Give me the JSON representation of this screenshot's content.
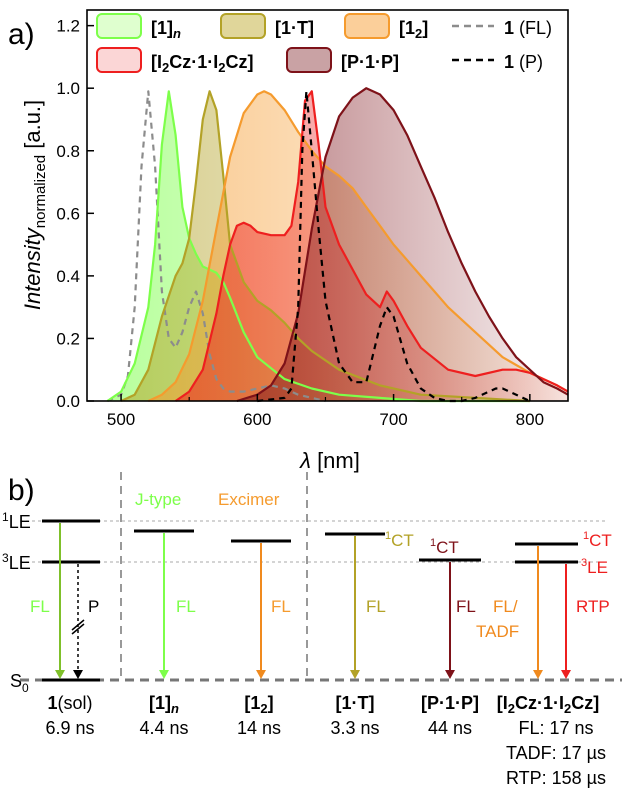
{
  "panel_a": {
    "label": "a)",
    "ylabel_main": "Intensity",
    "ylabel_sub": "normalized",
    "ylabel_unit": " [a.u.]",
    "xlabel_sym": "λ",
    "xlabel_unit": " [nm]",
    "legend": [
      {
        "main": "[1]",
        "sub": "n",
        "color": "#7dff4a"
      },
      {
        "main": "[1·T]",
        "sub": "",
        "color": "#b3a227"
      },
      {
        "main": "[1",
        "sub": "2",
        "tail": "]",
        "color": "#f59b2e"
      },
      {
        "main": "1",
        "tail": " (FL)",
        "color": "#8c8c8c"
      },
      {
        "main": "[I",
        "sub": "2",
        "tail": "Cz·1·I",
        "sub2": "2",
        "tail2": "Cz]",
        "color": "#ee1f1f"
      },
      {
        "main": "[P·1·P]",
        "color": "#7e1219"
      },
      {
        "main": "1",
        "tail": " (P)",
        "color": "#000000"
      }
    ]
  },
  "chart_data": {
    "type": "line",
    "title": "",
    "xlabel": "λ [nm]",
    "ylabel": "Intensity normalized [a.u.]",
    "xlim": [
      475,
      828
    ],
    "ylim": [
      0,
      1.25
    ],
    "xticks": [
      500,
      600,
      700,
      800
    ],
    "yticks": [
      0.0,
      0.2,
      0.4,
      0.6,
      0.8,
      1.0,
      1.2
    ],
    "series": [
      {
        "name": "1 (FL)",
        "color": "#8c8c8c",
        "style": "dashed",
        "fill": false,
        "x": [
          490,
          500,
          505,
          510,
          515,
          520,
          525,
          530,
          535,
          540,
          545,
          550,
          555,
          560,
          565,
          570,
          575,
          580,
          590,
          600,
          610,
          620,
          630,
          640,
          650
        ],
        "y": [
          0.0,
          0.02,
          0.08,
          0.3,
          0.75,
          0.99,
          0.75,
          0.35,
          0.2,
          0.17,
          0.22,
          0.3,
          0.35,
          0.28,
          0.15,
          0.07,
          0.04,
          0.03,
          0.03,
          0.04,
          0.05,
          0.04,
          0.02,
          0.01,
          0.0
        ]
      },
      {
        "name": "[1]n",
        "color": "#7dff4a",
        "style": "solid",
        "fill": true,
        "x": [
          490,
          500,
          510,
          520,
          525,
          530,
          535,
          540,
          545,
          550,
          555,
          560,
          565,
          570,
          575,
          580,
          590,
          600,
          620,
          640,
          660,
          690,
          720,
          760,
          800
        ],
        "y": [
          0.0,
          0.03,
          0.12,
          0.3,
          0.5,
          0.82,
          0.99,
          0.85,
          0.62,
          0.52,
          0.47,
          0.43,
          0.42,
          0.41,
          0.38,
          0.33,
          0.22,
          0.14,
          0.07,
          0.04,
          0.02,
          0.01,
          0.0,
          0.0,
          0.0
        ]
      },
      {
        "name": "[1·T]",
        "color": "#b3a227",
        "style": "solid",
        "fill": true,
        "x": [
          500,
          510,
          520,
          530,
          540,
          545,
          550,
          555,
          560,
          565,
          570,
          575,
          580,
          590,
          600,
          610,
          620,
          630,
          640,
          660,
          690,
          720,
          760,
          800
        ],
        "y": [
          0.0,
          0.02,
          0.1,
          0.27,
          0.4,
          0.44,
          0.52,
          0.7,
          0.9,
          0.99,
          0.93,
          0.72,
          0.5,
          0.38,
          0.32,
          0.29,
          0.25,
          0.2,
          0.16,
          0.1,
          0.05,
          0.02,
          0.01,
          0.0
        ]
      },
      {
        "name": "[12]",
        "color": "#f59b2e",
        "style": "solid",
        "fill": true,
        "x": [
          520,
          530,
          540,
          550,
          560,
          570,
          580,
          590,
          600,
          605,
          610,
          620,
          630,
          640,
          650,
          660,
          670,
          680,
          690,
          700,
          710,
          720,
          730,
          740,
          760,
          780,
          800,
          820,
          828
        ],
        "y": [
          0.0,
          0.02,
          0.06,
          0.15,
          0.32,
          0.55,
          0.78,
          0.92,
          0.98,
          0.99,
          0.98,
          0.93,
          0.86,
          0.8,
          0.75,
          0.72,
          0.68,
          0.62,
          0.56,
          0.5,
          0.45,
          0.4,
          0.35,
          0.3,
          0.22,
          0.14,
          0.09,
          0.05,
          0.03
        ]
      },
      {
        "name": "[I2Cz·1·I2Cz]",
        "color": "#ee1f1f",
        "style": "solid",
        "fill": true,
        "x": [
          540,
          550,
          560,
          570,
          575,
          580,
          585,
          590,
          595,
          600,
          610,
          620,
          625,
          630,
          635,
          640,
          645,
          650,
          660,
          670,
          680,
          690,
          695,
          700,
          710,
          720,
          740,
          760,
          780,
          790,
          800,
          810,
          820,
          828
        ],
        "y": [
          0.0,
          0.03,
          0.1,
          0.28,
          0.4,
          0.5,
          0.56,
          0.57,
          0.56,
          0.54,
          0.53,
          0.53,
          0.56,
          0.7,
          0.96,
          0.99,
          0.82,
          0.62,
          0.5,
          0.42,
          0.34,
          0.3,
          0.35,
          0.32,
          0.24,
          0.17,
          0.1,
          0.08,
          0.1,
          0.1,
          0.09,
          0.07,
          0.05,
          0.03
        ]
      },
      {
        "name": "[P·1·P]",
        "color": "#7e1219",
        "style": "solid",
        "fill": true,
        "x": [
          585,
          600,
          610,
          620,
          630,
          640,
          650,
          660,
          670,
          680,
          690,
          700,
          710,
          720,
          730,
          740,
          750,
          760,
          770,
          780,
          790,
          800,
          810,
          820,
          828
        ],
        "y": [
          0.0,
          0.02,
          0.05,
          0.12,
          0.28,
          0.55,
          0.78,
          0.91,
          0.97,
          1.0,
          0.98,
          0.93,
          0.85,
          0.75,
          0.65,
          0.54,
          0.44,
          0.35,
          0.27,
          0.2,
          0.14,
          0.1,
          0.06,
          0.04,
          0.02
        ]
      },
      {
        "name": "1 (P)",
        "color": "#000000",
        "style": "dashed",
        "fill": false,
        "x": [
          600,
          620,
          625,
          630,
          633,
          636,
          640,
          645,
          650,
          660,
          670,
          680,
          690,
          695,
          700,
          710,
          720,
          730,
          740,
          750,
          760,
          770,
          775,
          780,
          790,
          800
        ],
        "y": [
          0.0,
          0.01,
          0.04,
          0.3,
          0.8,
          0.99,
          0.8,
          0.55,
          0.32,
          0.12,
          0.06,
          0.06,
          0.24,
          0.3,
          0.27,
          0.12,
          0.04,
          0.01,
          0.0,
          0.0,
          0.01,
          0.03,
          0.04,
          0.04,
          0.02,
          0.0
        ]
      }
    ]
  },
  "panel_b": {
    "label": "b)",
    "level_1LE_sup": "1",
    "level_1LE": "LE",
    "level_3LE_sup": "3",
    "level_3LE": "LE",
    "level_S0": "S",
    "level_S0_sub": "0",
    "section_jtype": "J-type",
    "section_excimer": "Excimer",
    "labels": {
      "fl": "FL",
      "p": "P",
      "ct_sup": "1",
      "ct": "CT",
      "fl_slash": "FL/",
      "tadf": "TADF",
      "rtp": "RTP",
      "le_sup": "3",
      "le": "LE"
    },
    "compounds": [
      {
        "name_a": "1",
        "name_b": "(sol)",
        "time": "6.9 ns"
      },
      {
        "name_a": "[1]",
        "name_sub": "n",
        "time": "4.4 ns"
      },
      {
        "name_a": "[1",
        "name_sub": "2",
        "name_c": "]",
        "time": "14 ns"
      },
      {
        "name_a": "[1·T]",
        "time": "3.3 ns"
      },
      {
        "name_a": "[P·1·P]",
        "time": "44 ns"
      },
      {
        "name_a": "[I",
        "name_sub": "2",
        "name_c": "Cz·1·I",
        "name_sub2": "2",
        "name_d": "Cz]",
        "times": [
          "FL: 17 ns",
          "TADF: 17 µs",
          "RTP: 158 µs"
        ]
      }
    ]
  }
}
